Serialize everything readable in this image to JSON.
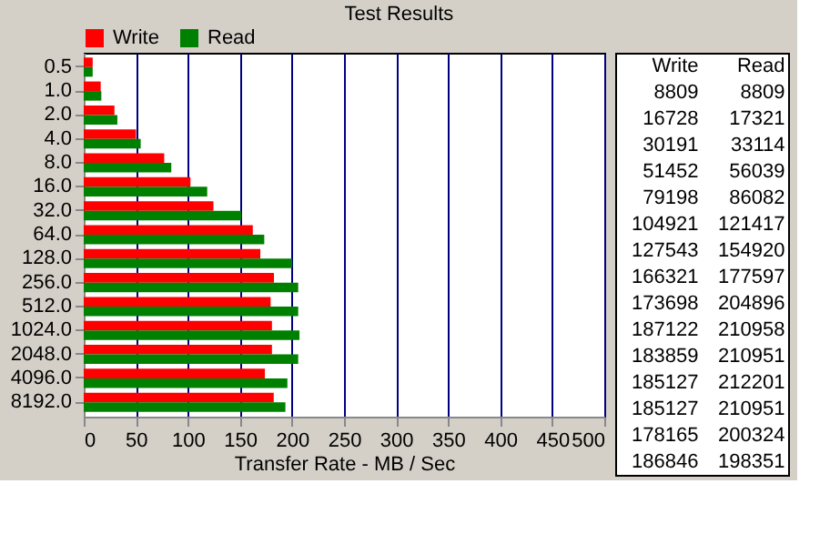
{
  "chart_data": {
    "type": "bar",
    "orientation": "horizontal",
    "title": "Test Results",
    "xlabel": "Transfer Rate - MB / Sec",
    "categories": [
      "0.5",
      "1.0",
      "2.0",
      "4.0",
      "8.0",
      "16.0",
      "32.0",
      "64.0",
      "128.0",
      "256.0",
      "512.0",
      "1024.0",
      "2048.0",
      "4096.0",
      "8192.0"
    ],
    "series": [
      {
        "name": "Write",
        "color": "#ff0000",
        "values": [
          8.6,
          16.3,
          29.5,
          50.2,
          77.3,
          102.5,
          124.6,
          162.4,
          169.6,
          182.7,
          179.5,
          180.8,
          180.8,
          174.0,
          182.5
        ]
      },
      {
        "name": "Read",
        "color": "#008000",
        "values": [
          8.6,
          16.9,
          32.3,
          54.7,
          84.1,
          118.6,
          151.3,
          173.4,
          200.1,
          206.0,
          206.0,
          207.2,
          206.0,
          195.6,
          193.7
        ]
      }
    ],
    "annotations": [
      "Write",
      "Read",
      "8809",
      "8809",
      "16728",
      "17321",
      "30191",
      "33114",
      "51452",
      "56039",
      "79198",
      "86082",
      "104921",
      "121417",
      "127543",
      "154920",
      "166321",
      "177597",
      "173698",
      "204896",
      "187122",
      "210958",
      "183859",
      "210951",
      "185127",
      "212201",
      "185127",
      "210951",
      "178165",
      "200324",
      "186846",
      "198351"
    ],
    "xlim": [
      0,
      500
    ],
    "xticks": [
      0,
      50,
      100,
      150,
      200,
      250,
      300,
      350,
      400,
      450,
      500
    ],
    "grid": "x",
    "legend": "top"
  }
}
